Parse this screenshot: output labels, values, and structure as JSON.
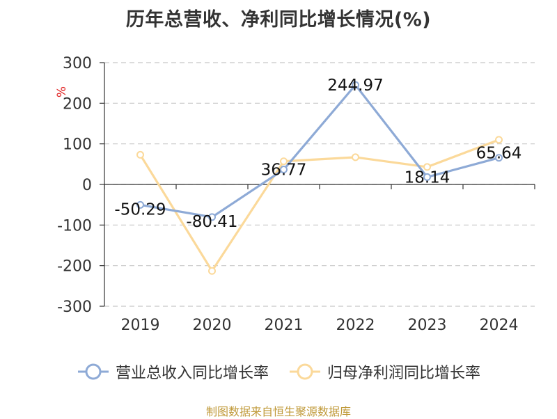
{
  "chart_data": {
    "type": "line",
    "title": "历年总营收、净利同比增长情况(%)",
    "yunit": "%",
    "categories": [
      "2019",
      "2020",
      "2021",
      "2022",
      "2023",
      "2024"
    ],
    "ylim": [
      -300,
      300
    ],
    "yticks": [
      300,
      200,
      100,
      0,
      -100,
      -200,
      -300
    ],
    "grid": true,
    "legend_position": "bottom",
    "series": [
      {
        "name": "营业总收入同比增长率",
        "color": "#8eaad6",
        "values": [
          -50.29,
          -80.41,
          36.77,
          244.97,
          18.14,
          65.64
        ],
        "labels": [
          "-50.29",
          "-80.41",
          "36.77",
          "244.97",
          "18.14",
          "65.64"
        ]
      },
      {
        "name": "归母净利润同比增长率",
        "color": "#fbd99a",
        "values": [
          73,
          -213,
          57,
          67,
          43,
          110
        ]
      }
    ]
  },
  "source": "制图数据来自恒生聚源数据库"
}
